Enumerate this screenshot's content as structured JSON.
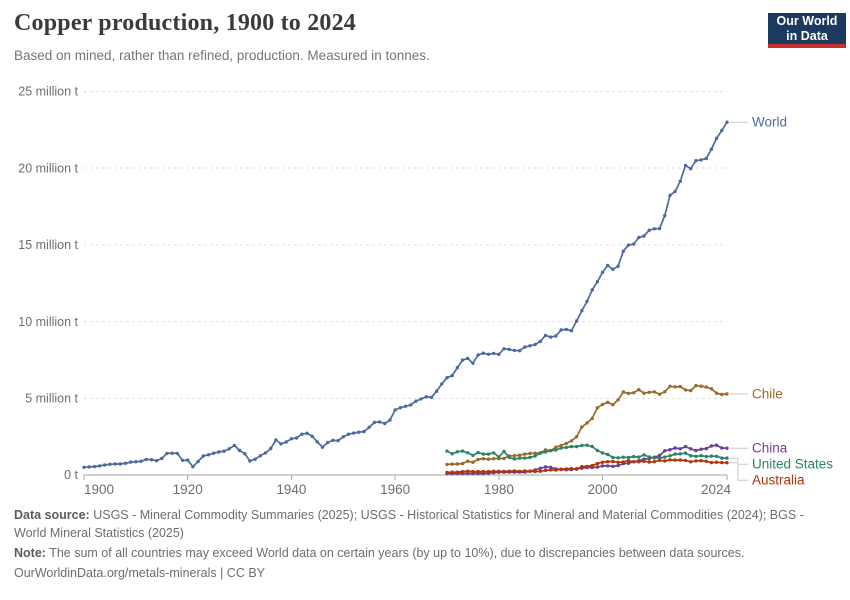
{
  "header": {
    "title": "Copper production, 1900 to 2024",
    "subtitle": "Based on mined, rather than refined, production. Measured in tonnes."
  },
  "logo": {
    "line1": "Our World",
    "line2": "in Data",
    "bg_color": "#1B3A5E",
    "bar_color": "#C7302F"
  },
  "footer": {
    "datasource_label": "Data source:",
    "datasource_text": "USGS - Mineral Commodity Summaries (2025); USGS - Historical Statistics for Mineral and Material Commodities (2024); BGS - World Mineral Statistics (2025)",
    "note_label": "Note:",
    "note_text": "The sum of all countries may exceed World data on certain years (by up to 10%), due to discrepancies between data sources.",
    "citation": "OurWorldinData.org/metals-minerals | CC BY"
  },
  "chart_data": {
    "type": "line",
    "title": "Copper production, 1900 to 2024",
    "unit": "million tonnes",
    "x_range": [
      1900,
      2024
    ],
    "y_range_million_t": [
      0,
      25
    ],
    "grid": "horizontal dashed",
    "legend_position": "right of line ends",
    "markers": true,
    "colors": {
      "axis": "#a5a5a5",
      "grid": "#dcdcdc",
      "tick_label": "#6e6e6e",
      "connector": "#c9c9c9"
    },
    "x_ticks": [
      1900,
      1920,
      1940,
      1960,
      1980,
      2000,
      2024
    ],
    "y_ticks": [
      {
        "value": 0,
        "label": "0 t"
      },
      {
        "value": 5,
        "label": "5 million t"
      },
      {
        "value": 10,
        "label": "10 million t"
      },
      {
        "value": 15,
        "label": "15 million t"
      },
      {
        "value": 20,
        "label": "20 million t"
      },
      {
        "value": 25,
        "label": "25 million t"
      }
    ],
    "series": [
      {
        "name": "World",
        "color": "#4C6A9C",
        "start_year": 1900,
        "values": [
          0.5,
          0.53,
          0.55,
          0.59,
          0.65,
          0.7,
          0.72,
          0.72,
          0.76,
          0.84,
          0.87,
          0.89,
          1.02,
          1.0,
          0.93,
          1.08,
          1.41,
          1.42,
          1.41,
          0.96,
          0.97,
          0.54,
          0.88,
          1.24,
          1.32,
          1.42,
          1.5,
          1.55,
          1.71,
          1.93,
          1.6,
          1.39,
          0.91,
          1.03,
          1.25,
          1.44,
          1.72,
          2.28,
          2.03,
          2.15,
          2.36,
          2.41,
          2.66,
          2.72,
          2.52,
          2.16,
          1.81,
          2.12,
          2.26,
          2.24,
          2.49,
          2.66,
          2.73,
          2.79,
          2.83,
          3.11,
          3.42,
          3.46,
          3.36,
          3.58,
          4.24,
          4.39,
          4.48,
          4.57,
          4.81,
          4.96,
          5.1,
          5.06,
          5.46,
          5.94,
          6.34,
          6.48,
          7.0,
          7.49,
          7.6,
          7.29,
          7.82,
          7.94,
          7.87,
          7.93,
          7.87,
          8.23,
          8.19,
          8.12,
          8.1,
          8.34,
          8.42,
          8.5,
          8.71,
          9.1,
          8.99,
          9.06,
          9.46,
          9.49,
          9.4,
          10.04,
          10.71,
          11.32,
          12.06,
          12.6,
          13.21,
          13.66,
          13.41,
          13.61,
          14.59,
          14.99,
          15.05,
          15.48,
          15.58,
          15.96,
          16.05,
          16.06,
          16.91,
          18.23,
          18.49,
          19.15,
          20.18,
          19.97,
          20.49,
          20.54,
          20.63,
          21.24,
          21.95,
          22.46,
          23.0
        ]
      },
      {
        "name": "Chile",
        "color": "#9A6A26",
        "start_year": 1970,
        "values": [
          0.69,
          0.71,
          0.72,
          0.74,
          0.9,
          0.83,
          1.01,
          1.06,
          1.03,
          1.06,
          1.07,
          1.08,
          1.24,
          1.26,
          1.29,
          1.36,
          1.4,
          1.42,
          1.45,
          1.63,
          1.59,
          1.81,
          1.93,
          2.06,
          2.22,
          2.49,
          3.12,
          3.39,
          3.69,
          4.38,
          4.6,
          4.74,
          4.58,
          4.9,
          5.41,
          5.32,
          5.36,
          5.56,
          5.33,
          5.39,
          5.42,
          5.26,
          5.43,
          5.78,
          5.75,
          5.76,
          5.55,
          5.5,
          5.83,
          5.79,
          5.73,
          5.62,
          5.33,
          5.25,
          5.29
        ]
      },
      {
        "name": "China",
        "color": "#6D3E91",
        "start_year": 1970,
        "values": [
          0.09,
          0.1,
          0.1,
          0.1,
          0.1,
          0.1,
          0.1,
          0.1,
          0.11,
          0.15,
          0.18,
          0.18,
          0.19,
          0.19,
          0.19,
          0.19,
          0.25,
          0.33,
          0.44,
          0.52,
          0.5,
          0.4,
          0.36,
          0.34,
          0.35,
          0.41,
          0.44,
          0.49,
          0.49,
          0.52,
          0.59,
          0.59,
          0.57,
          0.61,
          0.74,
          0.76,
          0.87,
          0.93,
          1.03,
          1.07,
          1.16,
          1.27,
          1.58,
          1.65,
          1.76,
          1.71,
          1.85,
          1.71,
          1.59,
          1.68,
          1.72,
          1.89,
          1.94,
          1.76,
          1.75
        ]
      },
      {
        "name": "United States",
        "color": "#2C8465",
        "start_year": 1970,
        "values": [
          1.56,
          1.38,
          1.51,
          1.56,
          1.45,
          1.28,
          1.46,
          1.36,
          1.36,
          1.44,
          1.18,
          1.54,
          1.15,
          1.04,
          1.1,
          1.1,
          1.15,
          1.24,
          1.42,
          1.5,
          1.59,
          1.63,
          1.76,
          1.8,
          1.85,
          1.85,
          1.92,
          1.94,
          1.86,
          1.6,
          1.44,
          1.34,
          1.14,
          1.12,
          1.16,
          1.14,
          1.2,
          1.17,
          1.31,
          1.18,
          1.11,
          1.11,
          1.17,
          1.25,
          1.36,
          1.38,
          1.43,
          1.26,
          1.22,
          1.26,
          1.2,
          1.23,
          1.22,
          1.1,
          1.1
        ]
      },
      {
        "name": "Australia",
        "color": "#B13507",
        "start_year": 1970,
        "values": [
          0.16,
          0.18,
          0.18,
          0.22,
          0.25,
          0.22,
          0.22,
          0.22,
          0.22,
          0.24,
          0.24,
          0.23,
          0.25,
          0.26,
          0.24,
          0.26,
          0.25,
          0.23,
          0.24,
          0.3,
          0.33,
          0.32,
          0.38,
          0.4,
          0.42,
          0.38,
          0.55,
          0.56,
          0.61,
          0.74,
          0.83,
          0.87,
          0.88,
          0.83,
          0.85,
          0.93,
          0.86,
          0.86,
          0.89,
          0.85,
          0.87,
          0.96,
          0.91,
          0.99,
          0.97,
          0.97,
          0.95,
          0.86,
          0.92,
          0.93,
          0.89,
          0.81,
          0.83,
          0.81,
          0.8
        ]
      }
    ]
  }
}
